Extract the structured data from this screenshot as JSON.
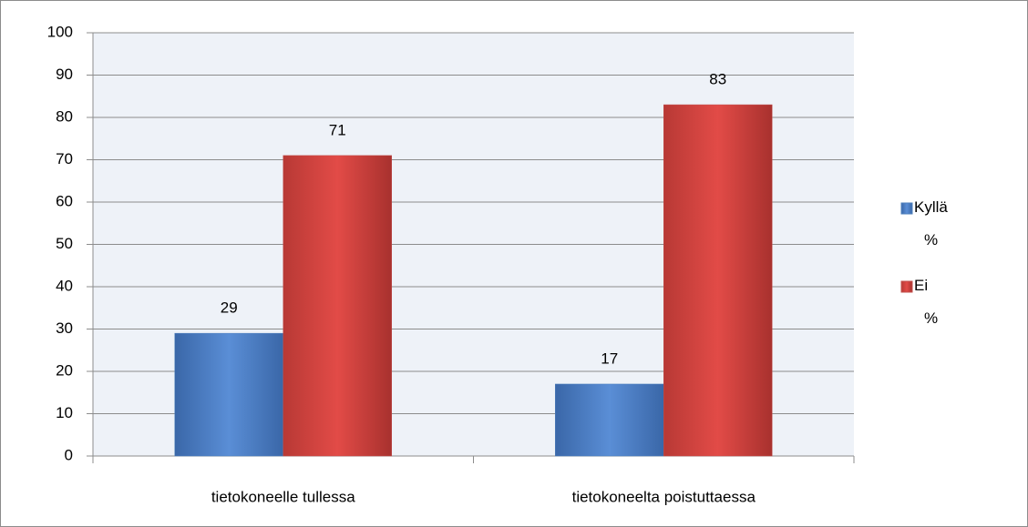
{
  "chart_data": {
    "type": "bar",
    "categories": [
      "tietokoneelle tullessa",
      "tietokoneelta poistuttaessa"
    ],
    "series": [
      {
        "name": "Kyllä %",
        "color": "#4f81bd",
        "values": [
          29,
          17
        ]
      },
      {
        "name": "Ei %",
        "color": "#c0504d",
        "values": [
          71,
          83
        ]
      }
    ],
    "ylim": [
      0,
      100
    ],
    "yticks": [
      0,
      10,
      20,
      30,
      40,
      50,
      60,
      70,
      80,
      90,
      100
    ],
    "grid": true,
    "legend": "right"
  }
}
